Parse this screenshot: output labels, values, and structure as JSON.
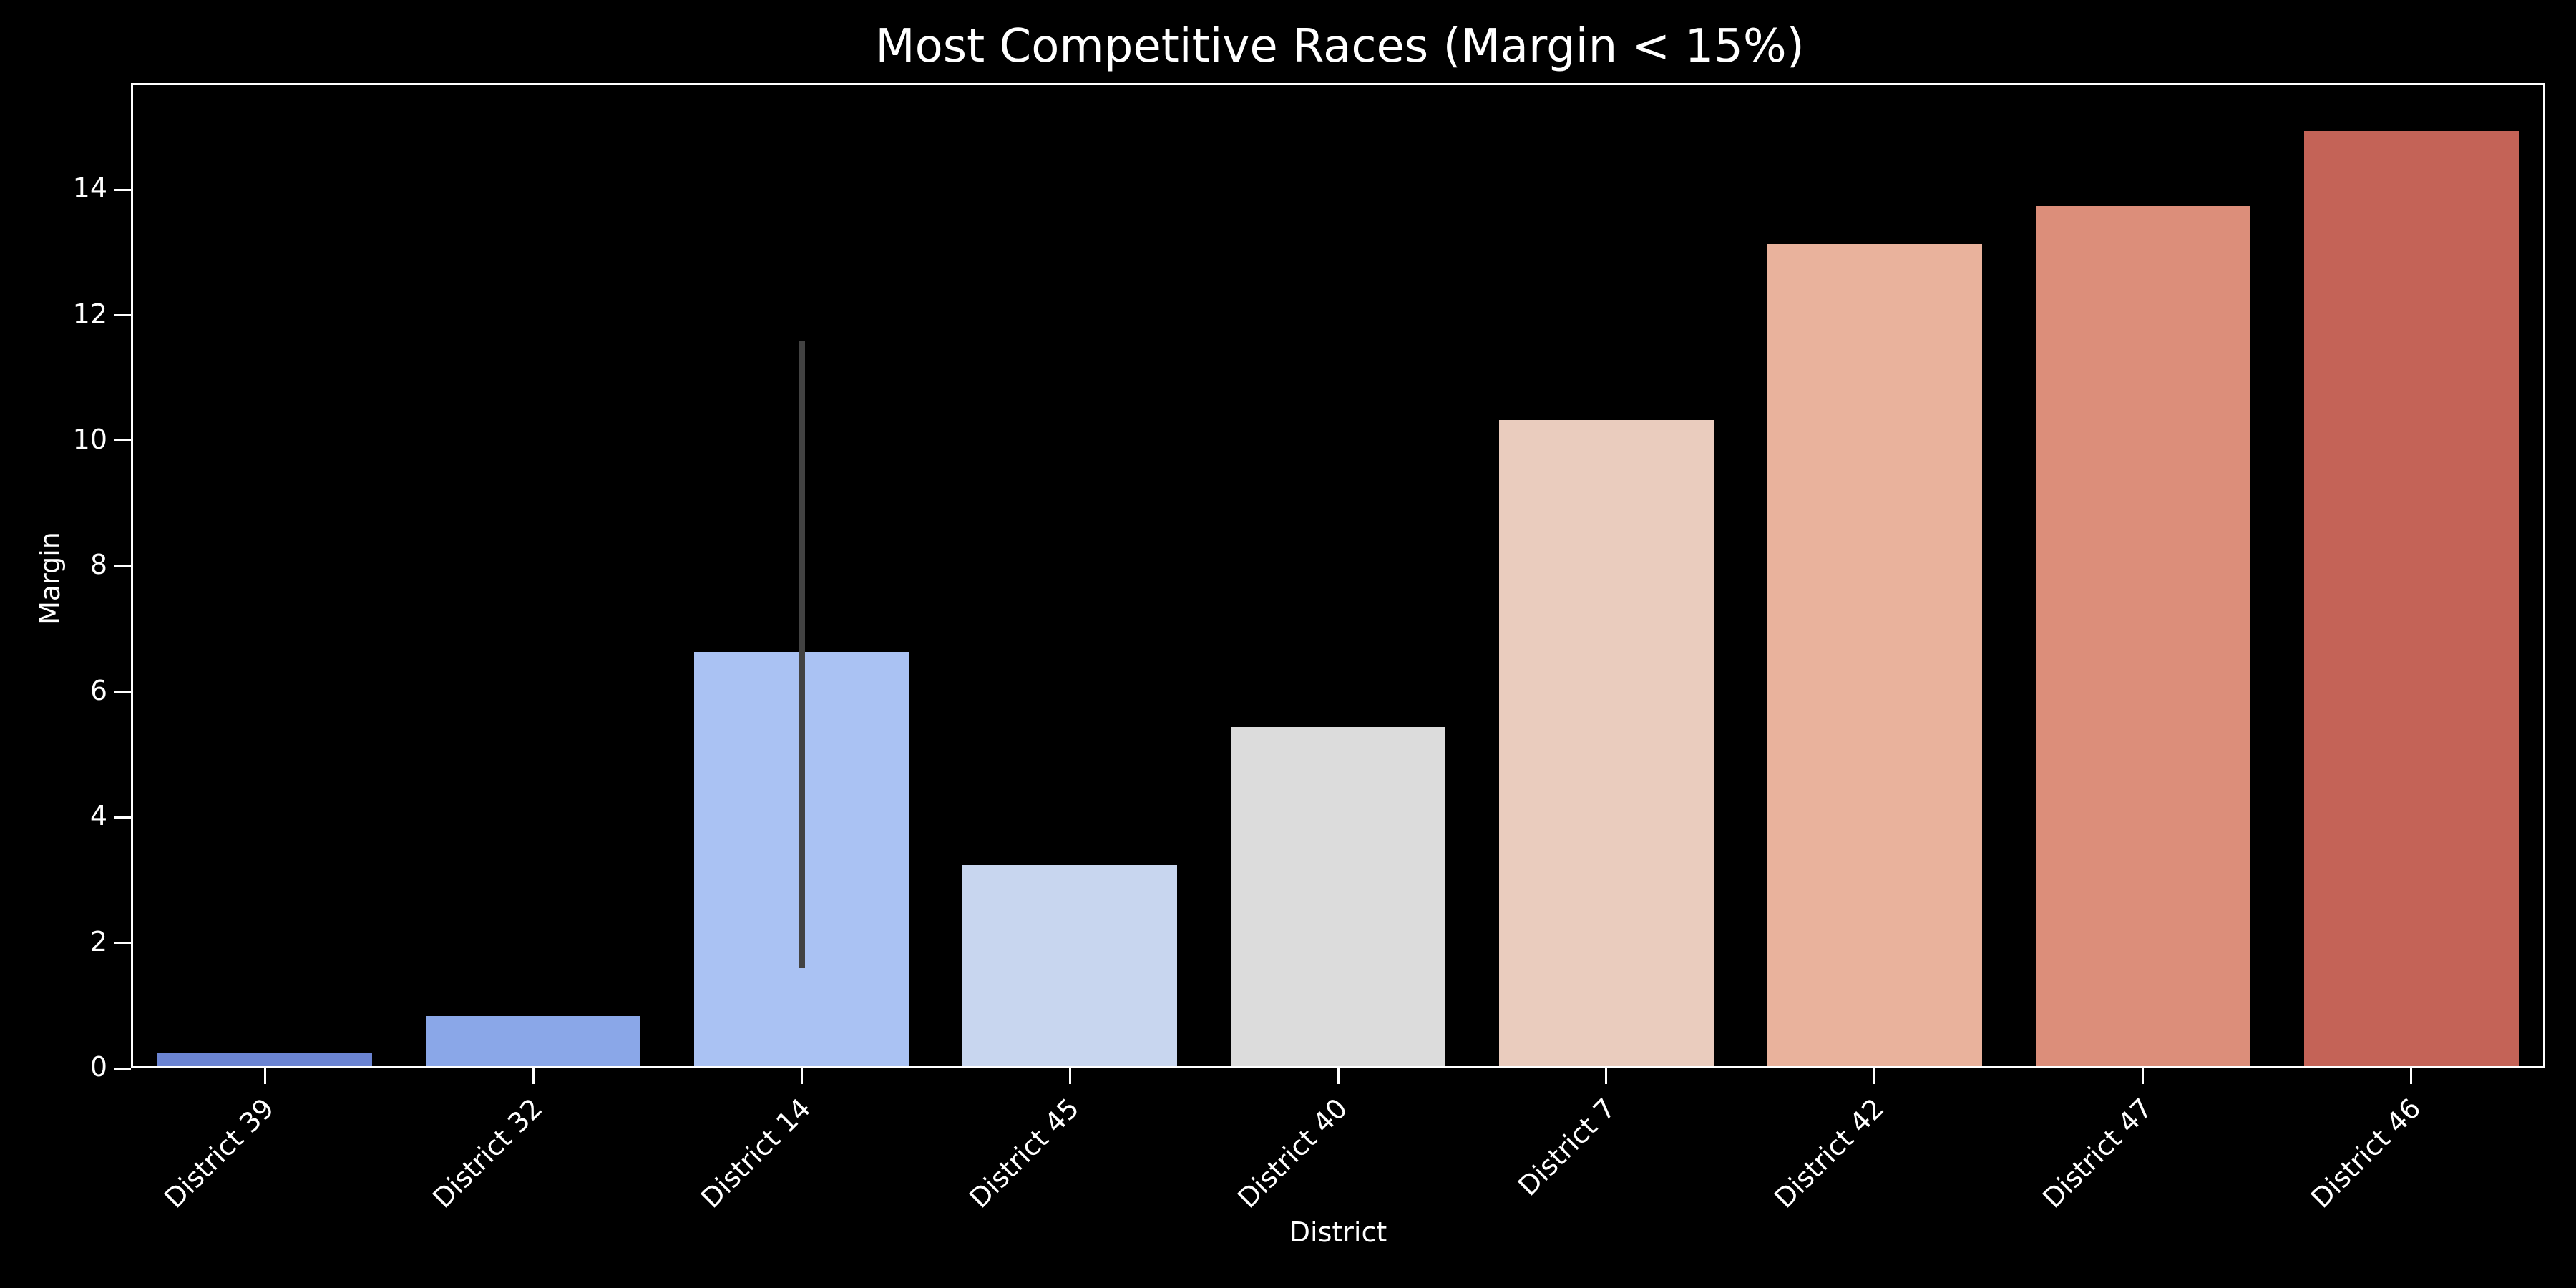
{
  "chart_data": {
    "type": "bar",
    "title": "Most Competitive Races (Margin < 15%)",
    "xlabel": "District",
    "ylabel": "Margin",
    "ylim": [
      0,
      15.7
    ],
    "yticks": [
      0,
      2,
      4,
      6,
      8,
      10,
      12,
      14
    ],
    "grid": false,
    "legend": null,
    "categories": [
      "District 39",
      "District 32",
      "District 14",
      "District 45",
      "District 40",
      "District 7",
      "District 42",
      "District 47",
      "District 46"
    ],
    "values": [
      0.2,
      0.8,
      6.6,
      3.2,
      5.4,
      10.3,
      13.1,
      13.7,
      14.9
    ],
    "error_bars": [
      null,
      null,
      [
        1.6,
        11.6
      ],
      null,
      null,
      null,
      null,
      null,
      null
    ],
    "colors": [
      "#6b84d2",
      "#8aa7e8",
      "#aac2f3",
      "#c8d6ef",
      "#dcdcdc",
      "#eaccbe",
      "#e9b29c",
      "#dc8e7a",
      "#c46357"
    ],
    "error_bar_color": "#424242",
    "background": "#000000",
    "foreground": "#ffffff"
  }
}
